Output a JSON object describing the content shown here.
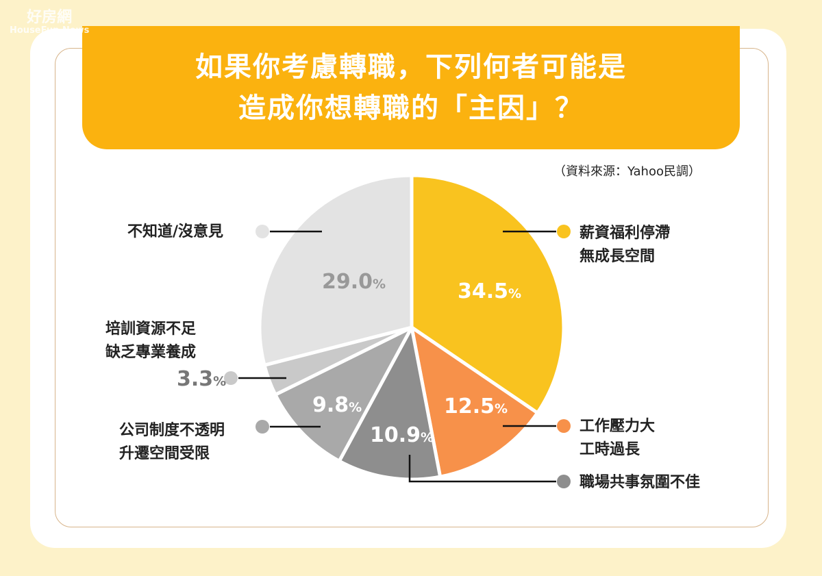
{
  "logo": {
    "cn": "好房網",
    "en": "HouseFun News"
  },
  "title": {
    "line1": "如果你考慮轉職，下列何者可能是",
    "line2": "造成你想轉職的「主因」？"
  },
  "source": "（資料來源：Yahoo民調）",
  "chart_data": {
    "type": "pie",
    "start": "12 o'clock, clockwise",
    "slices": [
      {
        "label": [
          "薪資福利停滯",
          "無成長空間"
        ],
        "value": 34.5,
        "display": "34.5",
        "color": "#f9c31f"
      },
      {
        "label": [
          "工作壓力大",
          "工時過長"
        ],
        "value": 12.5,
        "display": "12.5",
        "color": "#f7914a"
      },
      {
        "label": [
          "職場共事氛圍不佳"
        ],
        "value": 10.9,
        "display": "10.9",
        "color": "#8e8e8e"
      },
      {
        "label": [
          "公司制度不透明",
          "升遷空間受限"
        ],
        "value": 9.8,
        "display": "9.8",
        "color": "#a9a9a9"
      },
      {
        "label": [
          "培訓資源不足",
          "缺乏專業養成"
        ],
        "value": 3.3,
        "display": "3.3",
        "color": "#c9c9c9"
      },
      {
        "label": [
          "不知道/沒意見"
        ],
        "value": 29.0,
        "display": "29.0",
        "color": "#e3e3e3"
      }
    ],
    "unit": "%"
  }
}
